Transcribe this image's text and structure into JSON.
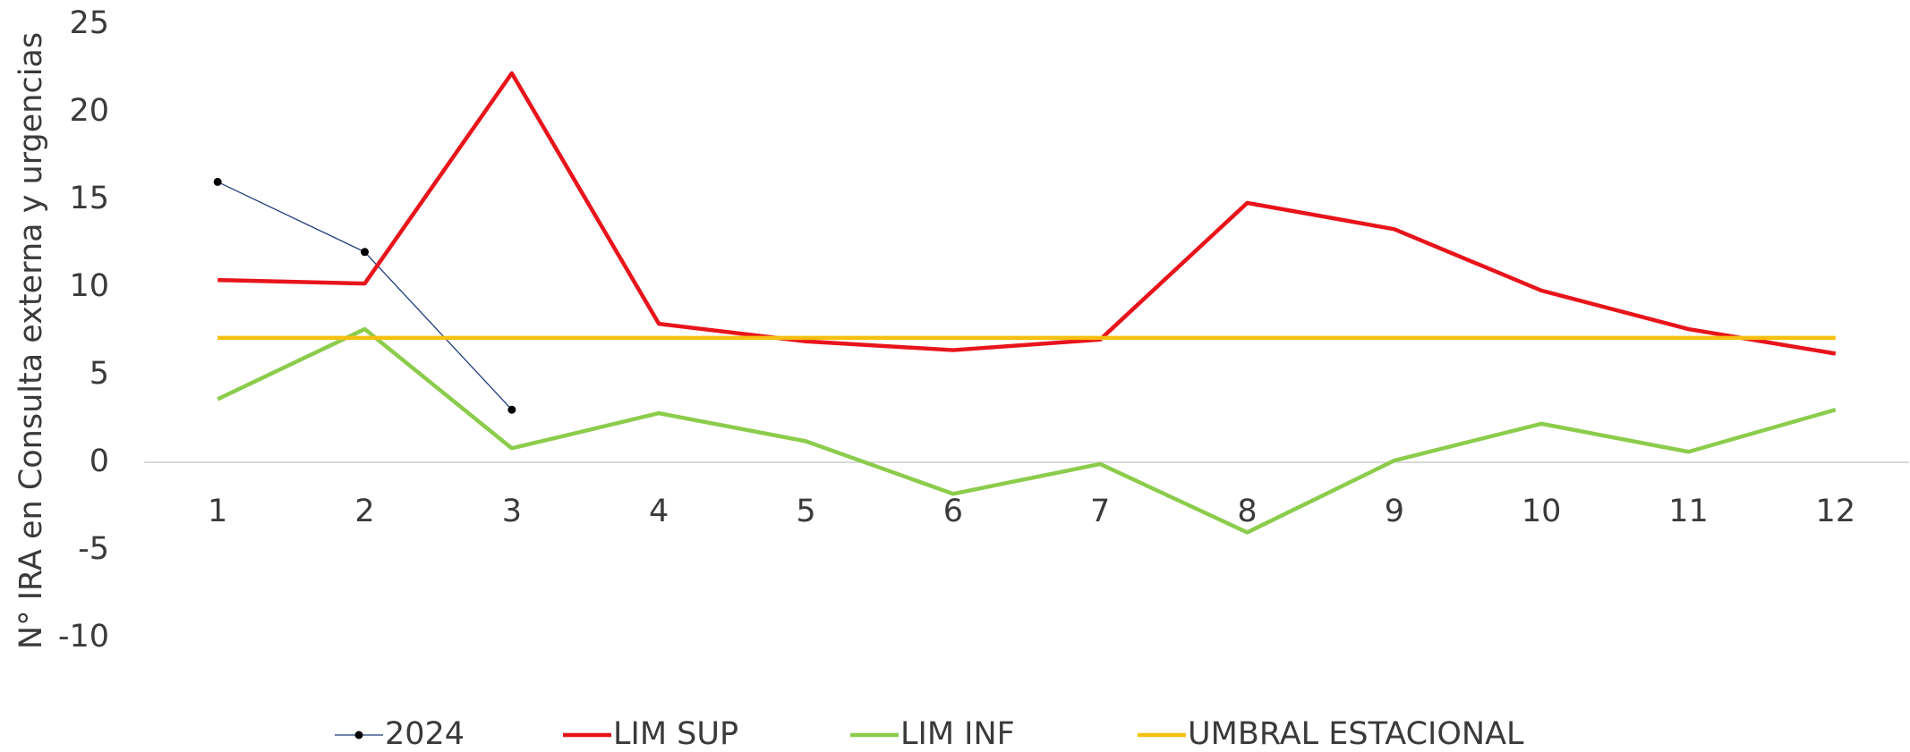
{
  "chart_data": {
    "type": "line",
    "y_label": "N° IRA en Consulta externa y urgencias",
    "categories": [
      "1",
      "2",
      "3",
      "4",
      "5",
      "6",
      "7",
      "8",
      "9",
      "10",
      "11",
      "12"
    ],
    "series": [
      {
        "name": "2024",
        "color": "#1f3a7a",
        "marker": true,
        "values": [
          16,
          12,
          3,
          null,
          null,
          null,
          null,
          null,
          null,
          null,
          null,
          null
        ]
      },
      {
        "name": "LIM SUP",
        "color": "#e8141b",
        "marker": false,
        "values": [
          10.4,
          10.2,
          22.2,
          7.9,
          6.9,
          6.4,
          7.0,
          14.8,
          13.3,
          9.8,
          7.6,
          6.2
        ]
      },
      {
        "name": "LIM INF",
        "color": "#8ccc4c",
        "marker": false,
        "values": [
          3.6,
          7.6,
          0.8,
          2.8,
          1.2,
          -1.8,
          -0.1,
          -4.0,
          0.1,
          2.2,
          0.6,
          3.0
        ]
      },
      {
        "name": "UMBRAL ESTACIONAL",
        "color": "#f5c010",
        "marker": false,
        "values": [
          7.1,
          7.1,
          7.1,
          7.1,
          7.1,
          7.1,
          7.1,
          7.1,
          7.1,
          7.1,
          7.1,
          7.1
        ]
      }
    ],
    "ylim": [
      -10,
      25
    ],
    "yticks": [
      -10,
      -5,
      0,
      5,
      10,
      15,
      20,
      25
    ],
    "grid": false,
    "legend": "bottom"
  }
}
